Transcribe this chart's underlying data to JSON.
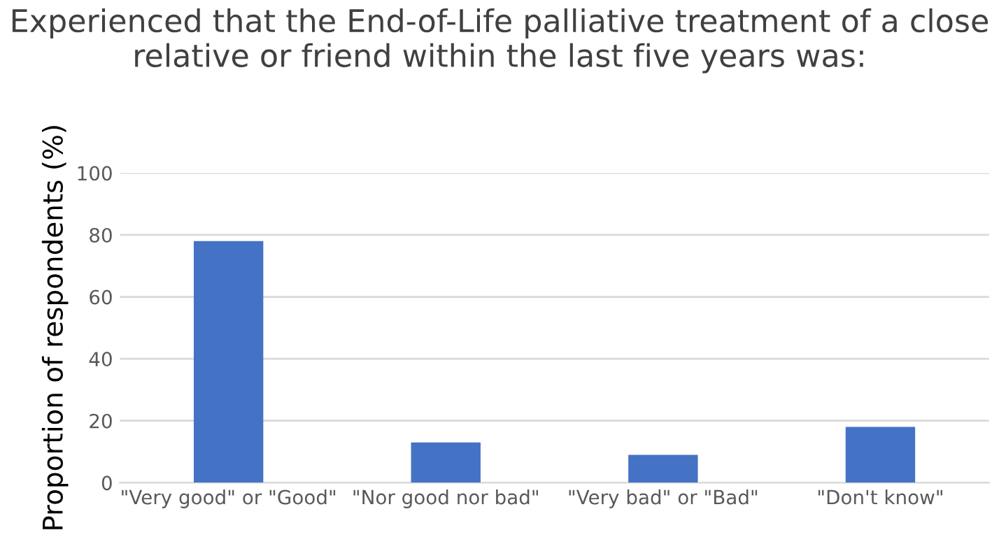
{
  "chart_data": {
    "type": "bar",
    "title": "Experienced that the End-of-Life palliative treatment of a close relative or friend within the last five years was:",
    "ylabel": "Proportion of respondents (%)",
    "categories": [
      "\"Very good\" or \"Good\"",
      "\"Nor good nor bad\"",
      "\"Very bad\" or \"Bad\"",
      "\"Don't know\""
    ],
    "values": [
      78,
      13,
      9,
      18
    ],
    "color": "#4472c4",
    "ylim": [
      0,
      100
    ],
    "yticks": [
      0,
      20,
      40,
      60,
      80,
      100
    ],
    "grid": "y"
  }
}
